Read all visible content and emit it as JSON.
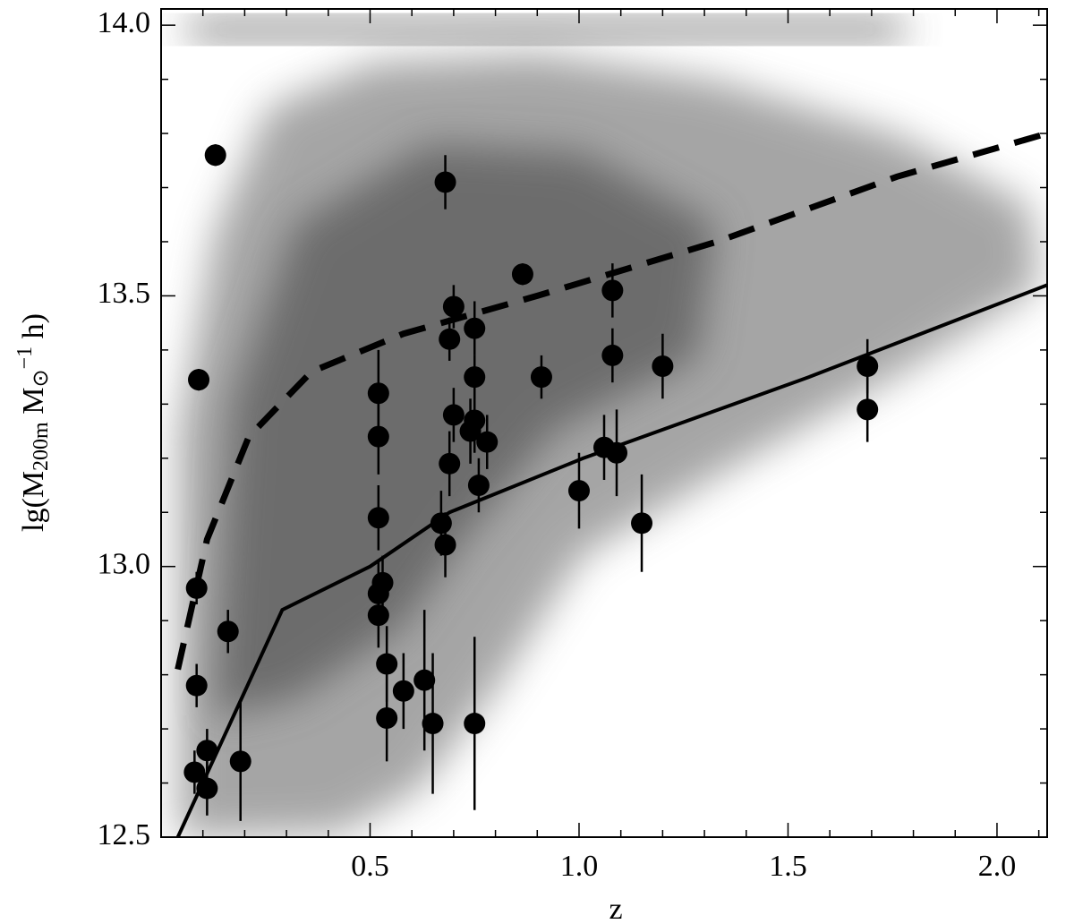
{
  "chart_data": {
    "type": "scatter",
    "x_label": "z",
    "y_label_parts": [
      "lg(M",
      "200m",
      " M",
      "⊙",
      "−1",
      " h)"
    ],
    "xlim": [
      0,
      2.12
    ],
    "ylim": [
      12.5,
      14.03
    ],
    "xticks": [
      0.5,
      {
        "value": 1,
        "label": "1.0"
      },
      1.5,
      {
        "value": 2,
        "label": "2.0"
      }
    ],
    "yticks": [
      12.5,
      {
        "value": 13,
        "label": "13.0"
      },
      13.5,
      {
        "value": 14,
        "label": "14.0"
      }
    ],
    "xticks_minor": [
      0.1,
      0.2,
      0.3,
      0.4,
      0.6,
      0.7,
      0.8,
      0.9,
      1.1,
      1.2,
      1.3,
      1.4,
      1.6,
      1.7,
      1.8,
      1.9,
      2.1
    ],
    "yticks_minor": [
      12.6,
      12.7,
      12.8,
      12.9,
      13.1,
      13.2,
      13.3,
      13.4,
      13.6,
      13.7,
      13.8,
      13.9
    ],
    "color": "#000000",
    "points": {
      "x": [
        0.13,
        0.09,
        0.085,
        0.085,
        0.08,
        0.11,
        0.11,
        0.16,
        0.19,
        0.68,
        0.865,
        0.7,
        0.69,
        0.75,
        0.75,
        0.91,
        1.08,
        1.08,
        1.2,
        1.69,
        1.69,
        0.52,
        0.52,
        0.7,
        0.75,
        0.74,
        0.78,
        0.69,
        0.76,
        1.0,
        1.06,
        1.09,
        1.15,
        0.52,
        0.67,
        0.68,
        0.52,
        0.53,
        0.52,
        0.54,
        0.54,
        0.58,
        0.63,
        0.65,
        0.75
      ],
      "values": [
        13.76,
        13.345,
        12.96,
        12.78,
        12.62,
        12.66,
        12.59,
        12.88,
        12.64,
        13.71,
        13.54,
        13.48,
        13.42,
        13.44,
        13.35,
        13.35,
        13.51,
        13.39,
        13.37,
        13.37,
        13.29,
        13.32,
        13.24,
        13.28,
        13.27,
        13.25,
        13.23,
        13.19,
        13.15,
        13.14,
        13.22,
        13.21,
        13.08,
        13.09,
        13.08,
        13.04,
        12.95,
        12.97,
        12.91,
        12.82,
        12.72,
        12.77,
        12.79,
        12.71,
        12.71
      ],
      "errors": [
        0.02,
        0.02,
        0.03,
        0.04,
        0.04,
        0.04,
        0.05,
        0.04,
        0.11,
        0.05,
        0.02,
        0.04,
        0.04,
        0.05,
        0.04,
        0.04,
        0.05,
        0.05,
        0.06,
        0.05,
        0.06,
        0.08,
        0.07,
        0.05,
        0.06,
        0.06,
        0.05,
        0.06,
        0.05,
        0.07,
        0.06,
        0.08,
        0.09,
        0.06,
        0.06,
        0.06,
        0.06,
        0.05,
        0.06,
        0.07,
        0.08,
        0.07,
        0.13,
        0.13,
        0.16
      ]
    },
    "solid_line": {
      "x": [
        0.04,
        0.29,
        0.5,
        0.69,
        1.01,
        1.55,
        2.12
      ],
      "values": [
        12.5,
        12.92,
        13.0,
        13.1,
        13.2,
        13.35,
        13.52
      ]
    },
    "dashed_line": {
      "x": [
        0.04,
        0.11,
        0.21,
        0.36,
        0.58,
        0.9,
        1.33,
        1.76,
        2.12
      ],
      "values": [
        12.81,
        13.05,
        13.24,
        13.36,
        13.43,
        13.5,
        13.6,
        13.72,
        13.8
      ]
    }
  }
}
